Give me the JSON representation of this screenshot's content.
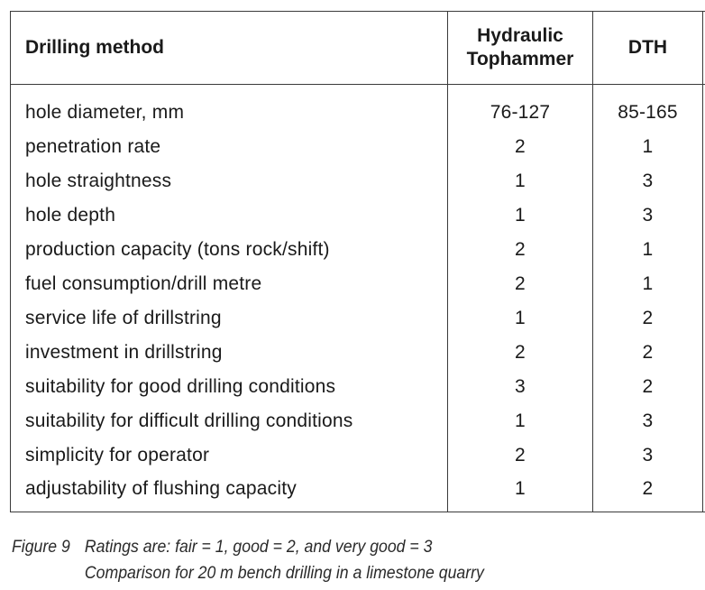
{
  "table": {
    "headers": {
      "method": "Drilling method",
      "hydraulic_line1": "Hydraulic",
      "hydraulic_line2": "Tophammer",
      "dth": "DTH"
    },
    "rows": [
      {
        "criterion": "hole diameter, mm",
        "hydraulic_tophammer": "76-127",
        "dth": "85-165"
      },
      {
        "criterion": "penetration rate",
        "hydraulic_tophammer": "2",
        "dth": "1"
      },
      {
        "criterion": "hole straightness",
        "hydraulic_tophammer": "1",
        "dth": "3"
      },
      {
        "criterion": "hole depth",
        "hydraulic_tophammer": "1",
        "dth": "3"
      },
      {
        "criterion": "production capacity (tons rock/shift)",
        "hydraulic_tophammer": "2",
        "dth": "1"
      },
      {
        "criterion": "fuel consumption/drill metre",
        "hydraulic_tophammer": "2",
        "dth": "1"
      },
      {
        "criterion": "service life of drillstring",
        "hydraulic_tophammer": "1",
        "dth": "2"
      },
      {
        "criterion": "investment in drillstring",
        "hydraulic_tophammer": "2",
        "dth": "2"
      },
      {
        "criterion": "suitability for good drilling conditions",
        "hydraulic_tophammer": "3",
        "dth": "2"
      },
      {
        "criterion": "suitability for difficult drilling conditions",
        "hydraulic_tophammer": "1",
        "dth": "3"
      },
      {
        "criterion": "simplicity for operator",
        "hydraulic_tophammer": "2",
        "dth": "3"
      },
      {
        "criterion": "adjustability of flushing capacity",
        "hydraulic_tophammer": "1",
        "dth": "2"
      }
    ]
  },
  "caption": {
    "label": "Figure 9",
    "line1": "Ratings are: fair = 1, good = 2, and very good = 3",
    "line2": "Comparison for 20 m bench drilling in a limestone quarry"
  }
}
